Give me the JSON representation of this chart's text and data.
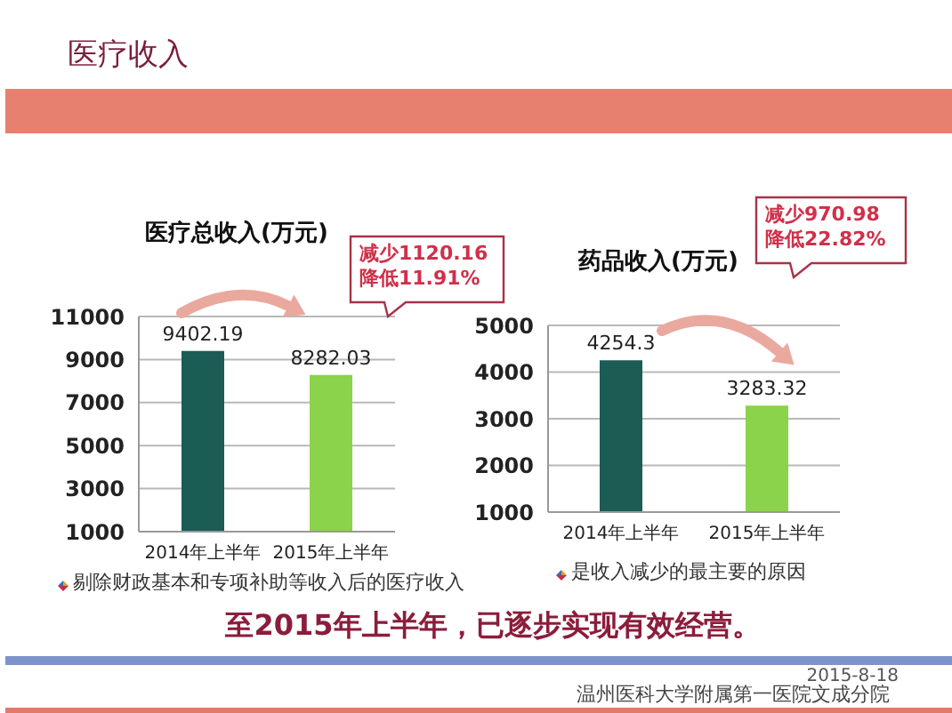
{
  "chart_data": [
    {
      "type": "other",
      "title": "医疗收入"
    },
    {
      "type": "bar",
      "title": "医疗总收入(万元)",
      "categories": [
        "2014年上半年",
        "2015年上半年"
      ],
      "values": [
        9402.19,
        8282.03
      ],
      "colors": [
        "#1b5c55",
        "#8bd34a"
      ],
      "ylim": [
        1000,
        11000
      ],
      "yticks": [
        1000,
        3000,
        5000,
        7000,
        9000,
        11000
      ],
      "grid": "y",
      "data_labels": true,
      "annotations": [
        "减少1120.16",
        "降低11.91%",
        "剔除财政基本和专项补助等收入后的医疗收入"
      ]
    },
    {
      "type": "bar",
      "title": "药品收入(万元)",
      "categories": [
        "2014年上半年",
        "2015年上半年"
      ],
      "values": [
        4254.3,
        3283.32
      ],
      "colors": [
        "#1b5c55",
        "#8bd34a"
      ],
      "ylim": [
        1000,
        5000
      ],
      "yticks": [
        1000,
        2000,
        3000,
        4000,
        5000
      ],
      "grid": "y",
      "data_labels": true,
      "annotations": [
        "减少970.98",
        "降低22.82%",
        "是收入减少的最主要的原因"
      ]
    },
    {
      "type": "other",
      "annotations": [
        "至2015年上半年，已逐步实现有效经营。",
        "2015-8-18",
        "温州医科大学附属第一医院文成分院"
      ]
    }
  ]
}
